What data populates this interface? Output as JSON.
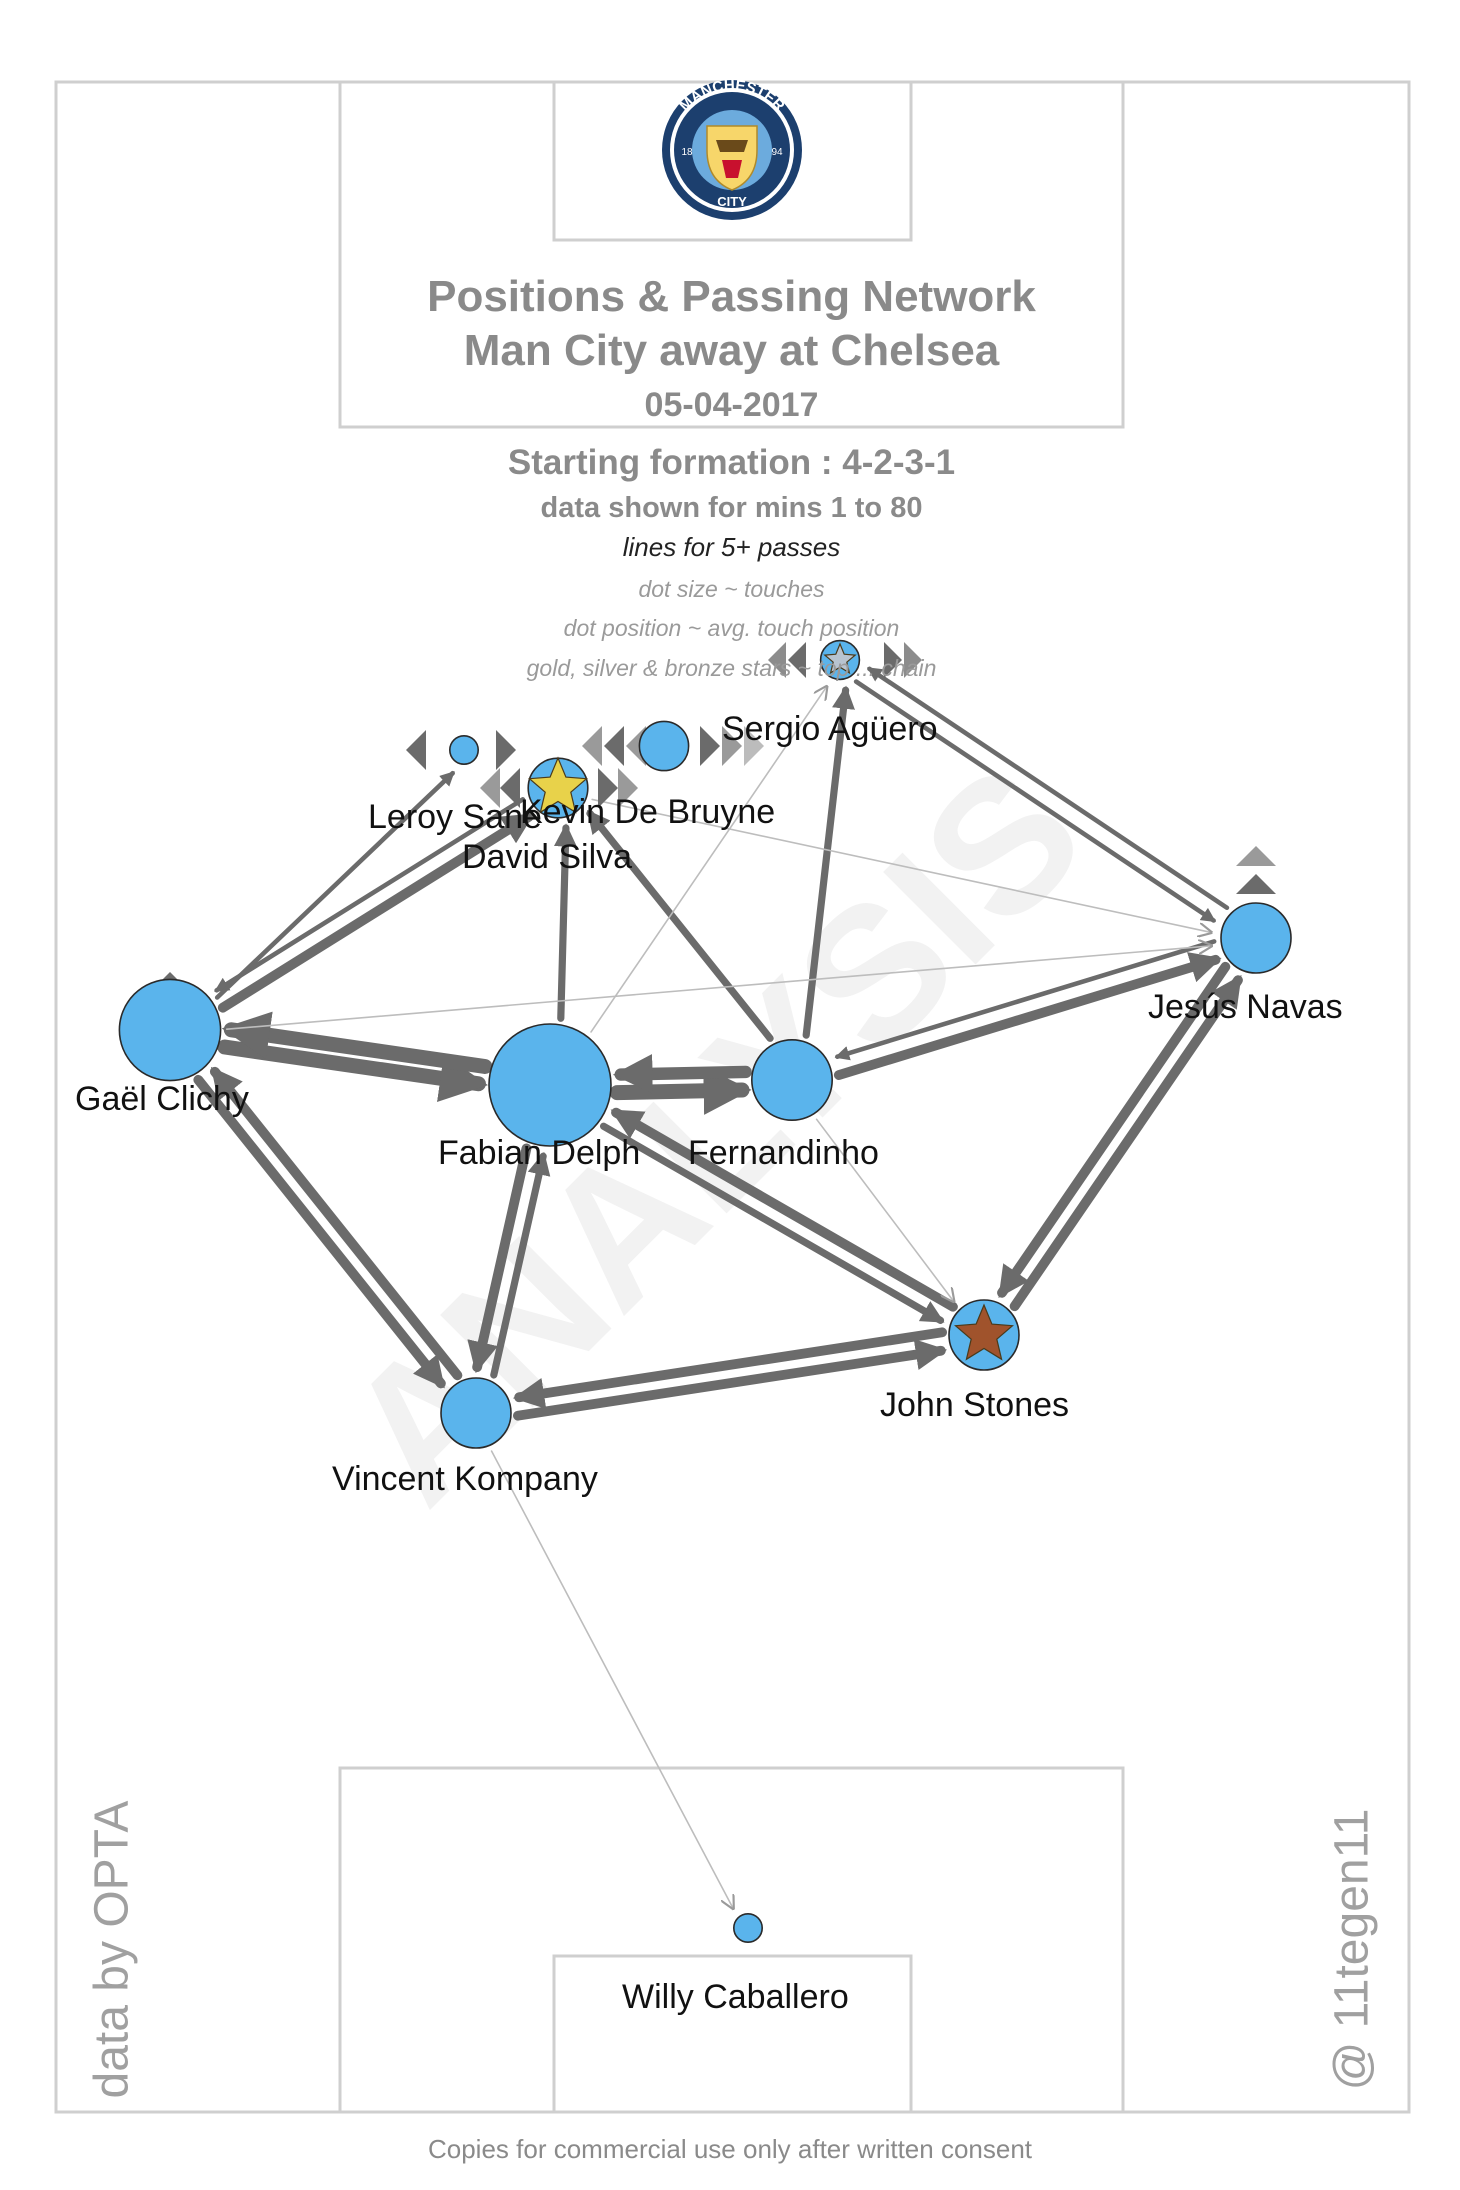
{
  "header": {
    "title": "Positions & Passing Network",
    "match": "Man City  away at  Chelsea",
    "date": "05-04-2017",
    "formation": "Starting formation : 4-2-3-1",
    "minutes": "data shown for mins 1 to 80",
    "lines_note": "lines for 5+ passes",
    "dot_size_note": "dot size ~ touches",
    "dot_position_note": "dot position ~ avg. touch position",
    "stars_note": "gold, silver & bronze stars ~ top ... chain"
  },
  "logo": {
    "ring_text_top": "MANCHESTER",
    "ring_text_bottom": "CITY",
    "year_left": "18",
    "year_right": "94"
  },
  "players": [
    {
      "id": "aguero",
      "name": "Sergio Agüero",
      "touches_rank": 2,
      "star": "silver"
    },
    {
      "id": "sane",
      "name": "Leroy Sané",
      "touches_rank": 1,
      "star": null
    },
    {
      "id": "debruyne",
      "name": "Kevin De Bruyne",
      "touches_rank": 3,
      "star": null
    },
    {
      "id": "silva",
      "name": "David Silva",
      "touches_rank": 4,
      "star": "gold"
    },
    {
      "id": "navas",
      "name": "Jesús Navas",
      "touches_rank": 5,
      "star": null
    },
    {
      "id": "clichy",
      "name": "Gaël Clichy",
      "touches_rank": 8,
      "star": null
    },
    {
      "id": "delph",
      "name": "Fabian Delph",
      "touches_rank": 10,
      "star": null
    },
    {
      "id": "fernandinho",
      "name": "Fernandinho",
      "touches_rank": 6,
      "star": null
    },
    {
      "id": "stones",
      "name": "John Stones",
      "touches_rank": 5,
      "star": "bronze"
    },
    {
      "id": "kompany",
      "name": "Vincent Kompany",
      "touches_rank": 5,
      "star": null
    },
    {
      "id": "caballero",
      "name": "Willy Caballero",
      "touches_rank": 1,
      "star": null
    }
  ],
  "pass_links": [
    {
      "from": "clichy",
      "to": "delph",
      "weight": 5
    },
    {
      "from": "delph",
      "to": "clichy",
      "weight": 5
    },
    {
      "from": "delph",
      "to": "fernandinho",
      "weight": 5
    },
    {
      "from": "fernandinho",
      "to": "delph",
      "weight": 4
    },
    {
      "from": "clichy",
      "to": "kompany",
      "weight": 3
    },
    {
      "from": "kompany",
      "to": "clichy",
      "weight": 3
    },
    {
      "from": "kompany",
      "to": "stones",
      "weight": 3
    },
    {
      "from": "stones",
      "to": "kompany",
      "weight": 3
    },
    {
      "from": "delph",
      "to": "kompany",
      "weight": 3
    },
    {
      "from": "kompany",
      "to": "delph",
      "weight": 2
    },
    {
      "from": "stones",
      "to": "navas",
      "weight": 3
    },
    {
      "from": "navas",
      "to": "stones",
      "weight": 3
    },
    {
      "from": "fernandinho",
      "to": "navas",
      "weight": 3
    },
    {
      "from": "stones",
      "to": "delph",
      "weight": 3
    },
    {
      "from": "delph",
      "to": "stones",
      "weight": 2
    },
    {
      "from": "fernandinho",
      "to": "silva",
      "weight": 2
    },
    {
      "from": "fernandinho",
      "to": "aguero",
      "weight": 2
    },
    {
      "from": "delph",
      "to": "silva",
      "weight": 2
    },
    {
      "from": "clichy",
      "to": "silva",
      "weight": 3
    },
    {
      "from": "silva",
      "to": "clichy",
      "weight": 1
    },
    {
      "from": "clichy",
      "to": "sane",
      "weight": 1
    },
    {
      "from": "aguero",
      "to": "navas",
      "weight": 1
    },
    {
      "from": "navas",
      "to": "fernandinho",
      "weight": 1
    },
    {
      "from": "navas",
      "to": "aguero",
      "weight": 1
    },
    {
      "from": "kompany",
      "to": "caballero",
      "weight": 0
    },
    {
      "from": "clichy",
      "to": "navas",
      "weight": 0
    },
    {
      "from": "fernandinho",
      "to": "stones",
      "weight": 0
    },
    {
      "from": "silva",
      "to": "navas",
      "weight": 0
    },
    {
      "from": "delph",
      "to": "aguero",
      "weight": 0
    }
  ],
  "footer": {
    "data_credit": "data by OPTA",
    "author": "@ 11tegen11",
    "copyright": "Copies for commercial use only after written consent"
  },
  "colors": {
    "pitch_lines": "#cfcfcf",
    "player_dot": "#5ab4ec",
    "pass_line": "#6b6b6b",
    "pass_line_thin": "#bdbdbd",
    "gold_star": "#e8d24a",
    "silver_star": "#b8c4d0",
    "bronze_star": "#a0532c"
  }
}
